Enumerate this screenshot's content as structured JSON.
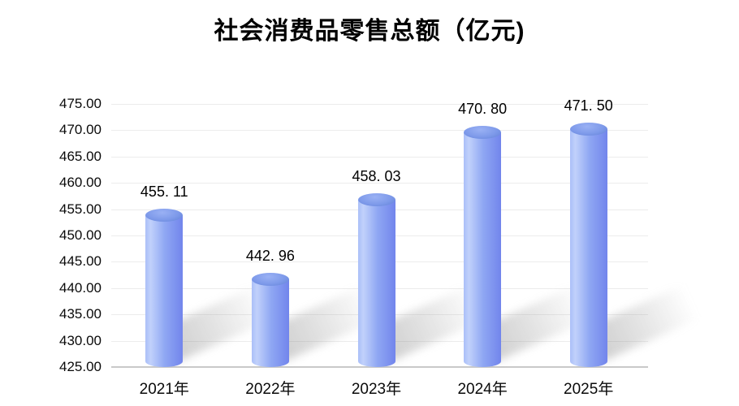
{
  "title": "社会消费品零售总额（亿元)",
  "colors": {
    "background": "#ffffff",
    "bar_body_light": "#c1d1fb",
    "bar_body_mid": "#8fa7f3",
    "bar_body_dark": "#7285ec",
    "bar_cap": "#7e9aea",
    "gridline": "#ececec",
    "axis_line": "#c9c9c9",
    "text": "#000000",
    "shadow": "#969696"
  },
  "chart_data": {
    "type": "bar",
    "bar_style": "cylinder-3d",
    "title": "社会消费品零售总额（亿元)",
    "categories": [
      "2021年",
      "2022年",
      "2023年",
      "2024年",
      "2025年"
    ],
    "values": [
      455.11,
      442.96,
      458.03,
      470.8,
      471.5
    ],
    "value_labels": [
      "455. 11",
      "442. 96",
      "458. 03",
      "470. 80",
      "471. 50"
    ],
    "xlabel": "",
    "ylabel": "",
    "ylim": [
      425,
      475
    ],
    "ytick_step": 5,
    "ytick_labels": [
      "425.00",
      "430.00",
      "435.00",
      "440.00",
      "445.00",
      "450.00",
      "455.00",
      "460.00",
      "465.00",
      "470.00",
      "475.00"
    ],
    "grid": true,
    "legend": false
  }
}
